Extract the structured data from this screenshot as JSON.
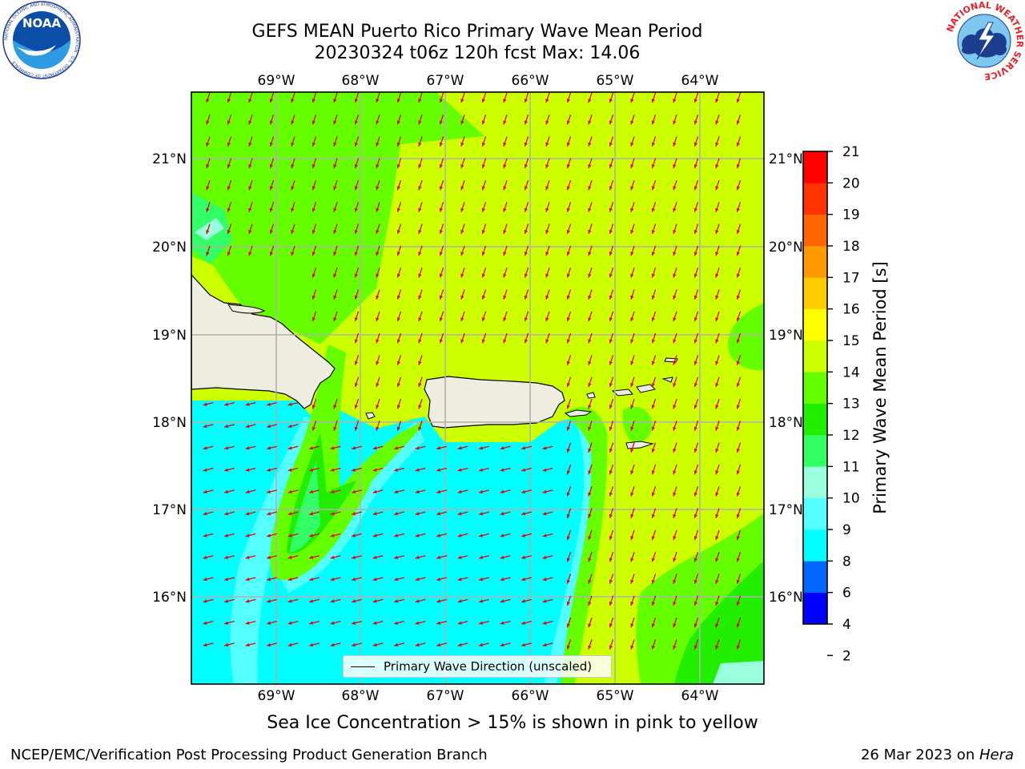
{
  "header": {
    "title_line1": "GEFS MEAN Puerto Rico Primary Wave Mean Period",
    "title_line2": "20230324 t06z 120h fcst   Max: 14.06"
  },
  "logos": {
    "left": {
      "icon": "noaa-logo",
      "text": "NOAA",
      "ring_text": "NATIONAL OCEANIC AND ATMOSPHERIC ADMINISTRATION · U.S. DEPARTMENT OF COMMERCE"
    },
    "right": {
      "icon": "nws-logo",
      "ring_text": "NATIONAL WEATHER SERVICE"
    }
  },
  "map": {
    "lon_ticks": [
      "69°W",
      "68°W",
      "67°W",
      "66°W",
      "65°W",
      "64°W"
    ],
    "lat_ticks": [
      "21°N",
      "20°N",
      "19°N",
      "18°N",
      "17°N",
      "16°N"
    ],
    "legend_label": "Primary Wave Direction (unscaled)",
    "land_color": "#efece0",
    "arrow_color": "#e8000b"
  },
  "colorbar": {
    "label": "Primary Wave Mean Period [s]",
    "ticks": [
      "21",
      "20",
      "19",
      "18",
      "17",
      "16",
      "15",
      "14",
      "13",
      "12",
      "11",
      "10",
      "9",
      "8",
      "6",
      "4",
      "2"
    ],
    "colors": [
      "#0000ff",
      "#0066ff",
      "#00ffff",
      "#55ffff",
      "#99ffdd",
      "#33ff66",
      "#22ee00",
      "#66ff00",
      "#ccff00",
      "#ffff00",
      "#ffcc00",
      "#ff9900",
      "#ff6600",
      "#ff3300",
      "#ff0000"
    ]
  },
  "notes": {
    "sea_ice": "Sea Ice Concentration > 15% is shown in pink to yellow"
  },
  "footer": {
    "left": "NCEP/EMC/Verification Post Processing Product Generation Branch",
    "date": "26 Mar 2023 on ",
    "host": "Hera"
  }
}
